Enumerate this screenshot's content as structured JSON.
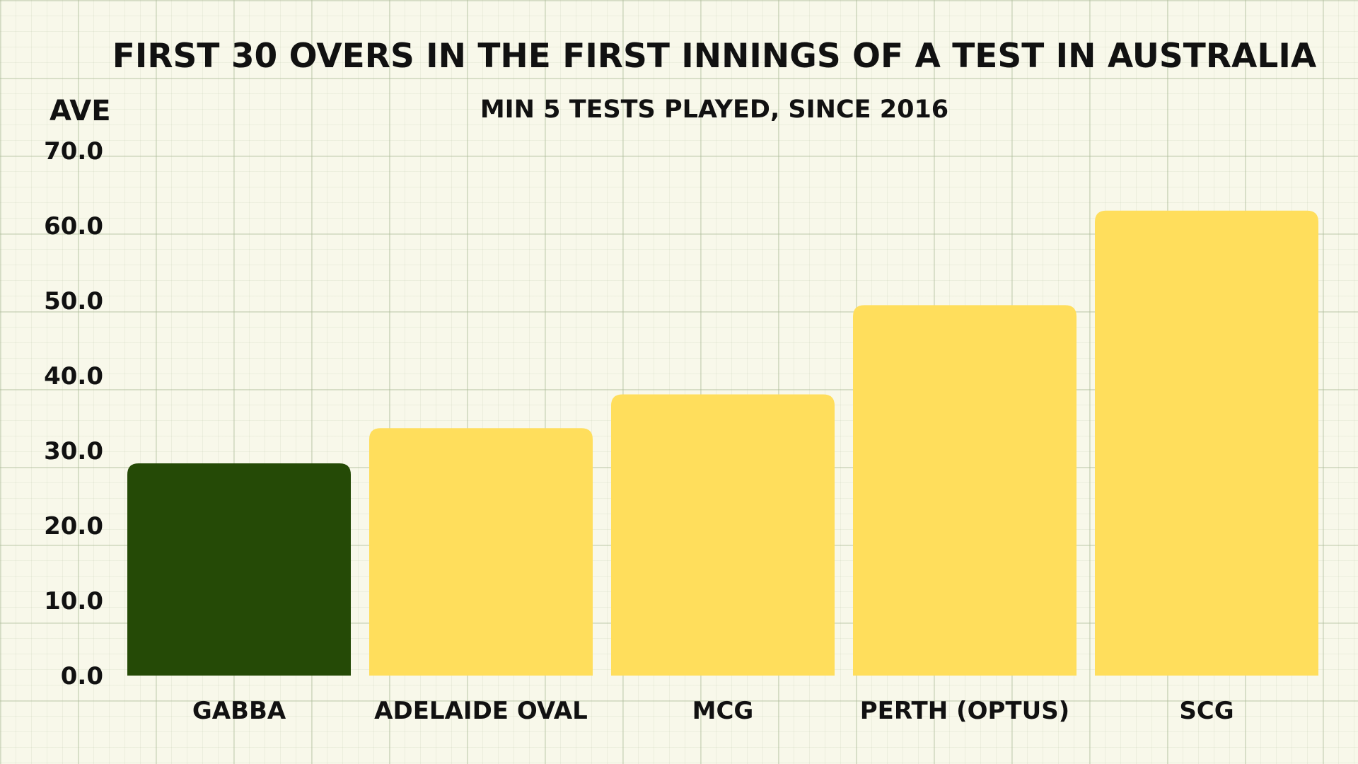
{
  "chart_data": {
    "type": "bar",
    "title": "First 30 overs in the first innings of a Test in Australia",
    "subtitle": "Min 5 Tests played, since 2016",
    "ylabel": "Ave",
    "xlabel": "",
    "categories": [
      "Gabba",
      "Adelaide Oval",
      "MCG",
      "Perth (Optus)",
      "SCG"
    ],
    "values": [
      28.3,
      33.0,
      37.5,
      49.4,
      62.0
    ],
    "highlight_index": 0,
    "ylim": [
      0,
      70
    ],
    "yticks": [
      "0.0",
      "10.0",
      "20.0",
      "30.0",
      "40.0",
      "50.0",
      "60.0",
      "70.0"
    ],
    "colors": {
      "highlight": "#254a06",
      "default": "#ffde5c",
      "background": "#f8f8ea"
    },
    "grid": true
  }
}
